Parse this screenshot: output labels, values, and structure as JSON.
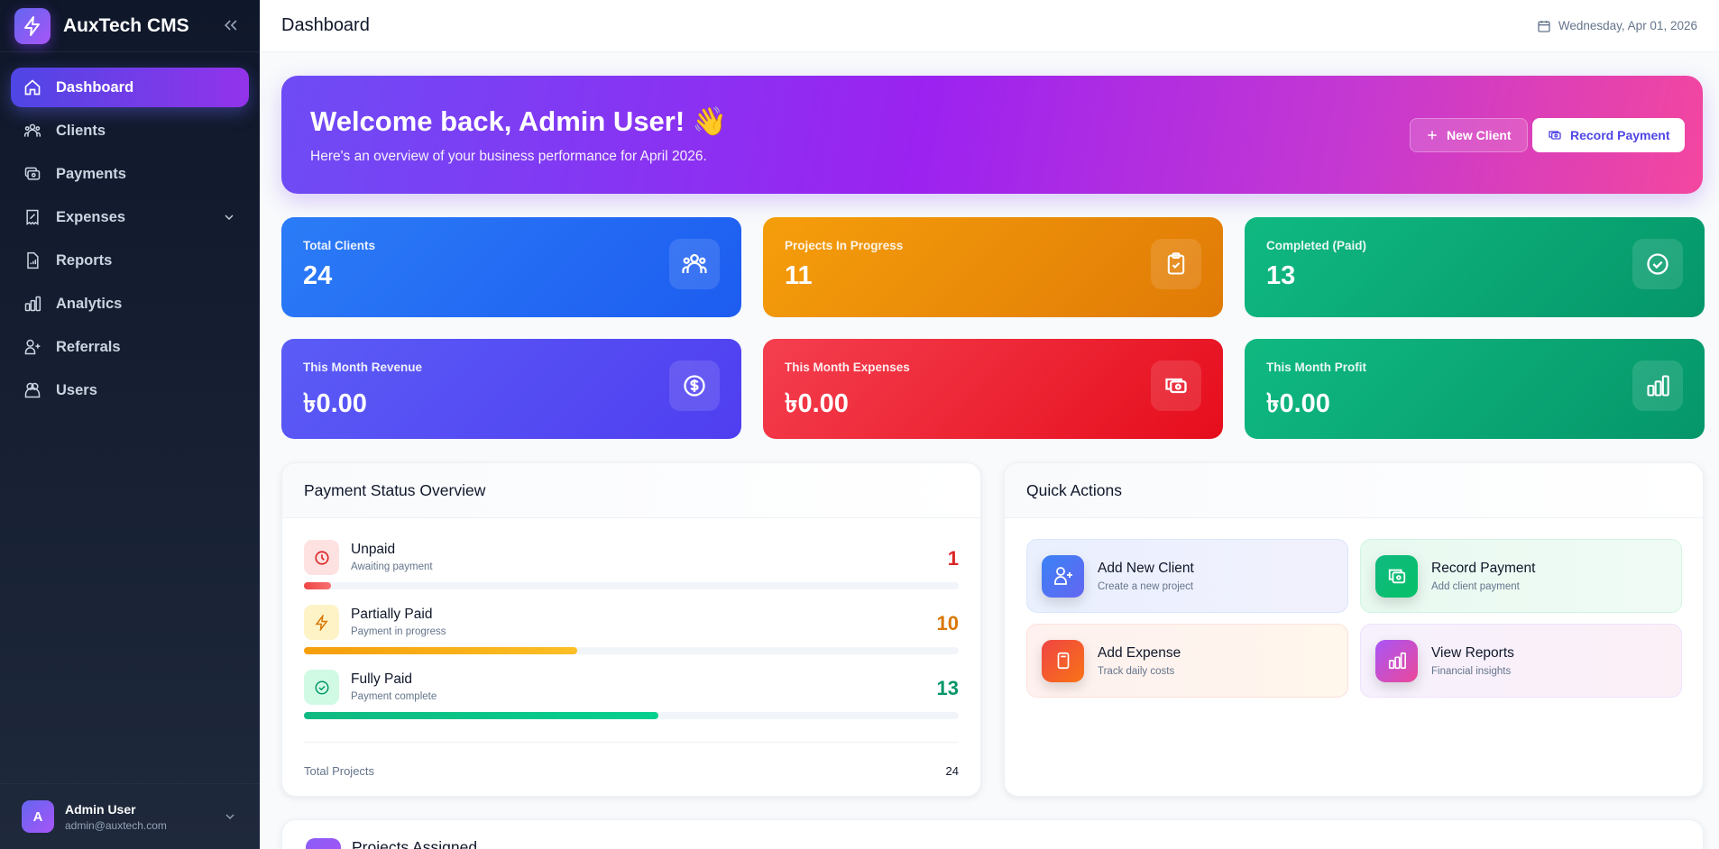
{
  "app": {
    "name": "AuxTech CMS"
  },
  "sidebar": {
    "items": [
      {
        "label": "Dashboard",
        "icon": "home-icon",
        "active": true
      },
      {
        "label": "Clients",
        "icon": "users-group-icon"
      },
      {
        "label": "Payments",
        "icon": "cash-icon"
      },
      {
        "label": "Expenses",
        "icon": "receipt-icon",
        "has_submenu": true
      },
      {
        "label": "Reports",
        "icon": "report-file-icon"
      },
      {
        "label": "Analytics",
        "icon": "bar-chart-icon"
      },
      {
        "label": "Referrals",
        "icon": "user-plus-icon"
      },
      {
        "label": "Users",
        "icon": "users-icon"
      }
    ],
    "user": {
      "initial": "A",
      "name": "Admin User",
      "email": "admin@auxtech.com"
    }
  },
  "header": {
    "title": "Dashboard",
    "date": "Wednesday, Apr 01, 2026"
  },
  "banner": {
    "title": "Welcome back, Admin User! 👋",
    "subtitle": "Here's an overview of your business performance for April 2026.",
    "new_client": "New Client",
    "record_payment": "Record Payment"
  },
  "stats": [
    {
      "label": "Total Clients",
      "value": "24",
      "color": "#2563eb"
    },
    {
      "label": "Projects In Progress",
      "value": "11",
      "color": "#f59e0b"
    },
    {
      "label": "Completed (Paid)",
      "value": "13",
      "color": "#10b981"
    },
    {
      "label": "This Month Revenue",
      "value": "৳0.00",
      "color": "#4f46e5"
    },
    {
      "label": "This Month Expenses",
      "value": "৳0.00",
      "color": "#ef4444"
    },
    {
      "label": "This Month Profit",
      "value": "৳0.00",
      "color": "#059669"
    }
  ],
  "payment_status": {
    "title": "Payment Status Overview",
    "rows": [
      {
        "name": "Unpaid",
        "sub": "Awaiting payment",
        "count": "1",
        "percent": 4.2,
        "color": "#dc2626"
      },
      {
        "name": "Partially Paid",
        "sub": "Payment in progress",
        "count": "10",
        "percent": 41.7,
        "color": "#d97706"
      },
      {
        "name": "Fully Paid",
        "sub": "Payment complete",
        "count": "13",
        "percent": 54.2,
        "color": "#059669"
      }
    ],
    "total_label": "Total Projects",
    "total": "24"
  },
  "quick_actions": {
    "title": "Quick Actions",
    "items": [
      {
        "title": "Add New Client",
        "sub": "Create a new project"
      },
      {
        "title": "Record Payment",
        "sub": "Add client payment"
      },
      {
        "title": "Add Expense",
        "sub": "Track daily costs"
      },
      {
        "title": "View Reports",
        "sub": "Financial insights"
      }
    ]
  },
  "projects": {
    "title": "Projects Assigned"
  }
}
